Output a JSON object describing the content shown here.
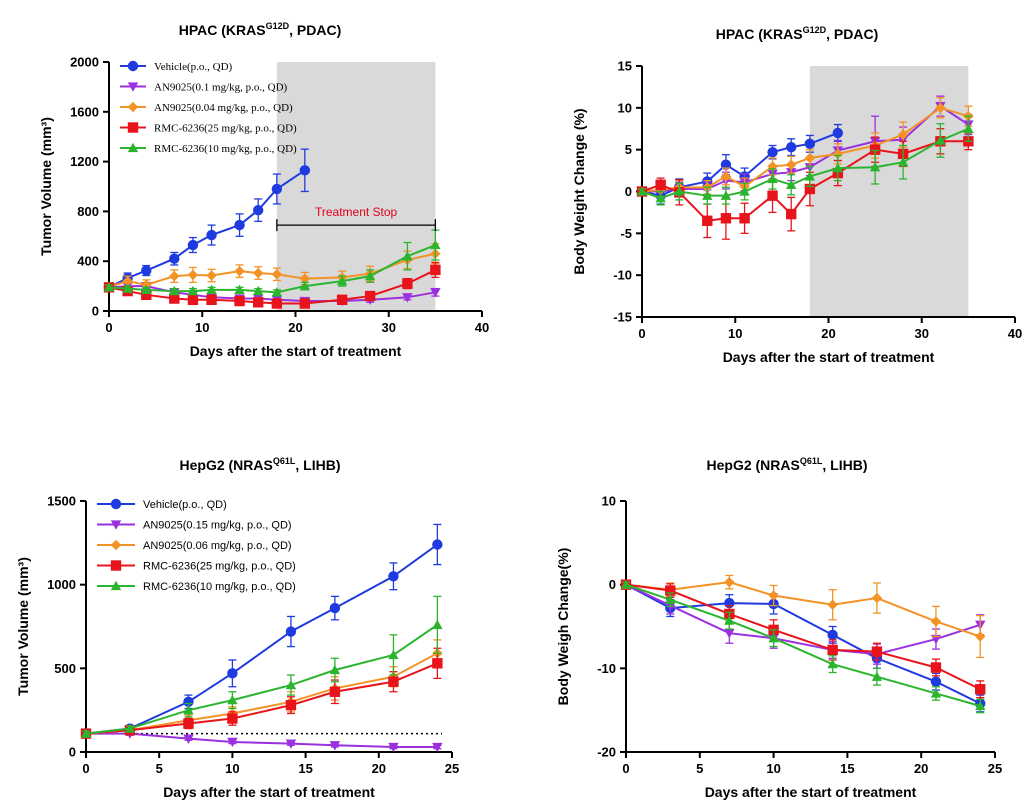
{
  "colors": {
    "vehicle": "#1f3be0",
    "an_low": "#9b30e0",
    "an_high": "#f39325",
    "rmc25": "#e8141b",
    "rmc10": "#2bb52f",
    "shade": "#d9d9d9"
  },
  "chart_data": [
    {
      "id": "A",
      "type": "line",
      "title_main": "HPAC (KRAS",
      "title_sup": "G12D",
      "title_rest": ", PDAC)",
      "xlabel": "Days after the start of treatment",
      "ylabel": "Tumor Volume (mm³)",
      "xlim": [
        0,
        40
      ],
      "ylim": [
        0,
        2000
      ],
      "xticks": [
        0,
        10,
        20,
        30,
        40
      ],
      "yticks": [
        0,
        400,
        800,
        1200,
        1600,
        2000
      ],
      "shaded_x": [
        18,
        35
      ],
      "legend_font": "serif",
      "legend_position": "top-left",
      "annotation": {
        "text": "Treatment Stop",
        "x1": 18,
        "x2": 35,
        "y": 690
      },
      "series": [
        {
          "name": "Vehicle(p.o., QD)",
          "color_key": "vehicle",
          "marker": "circle",
          "x": [
            0,
            2,
            4,
            7,
            9,
            11,
            14,
            16,
            18,
            21
          ],
          "y": [
            190,
            265,
            325,
            420,
            530,
            610,
            690,
            810,
            980,
            1130
          ],
          "err": [
            30,
            40,
            40,
            50,
            60,
            80,
            90,
            90,
            120,
            170
          ]
        },
        {
          "name": "AN9025(0.1 mg/kg, p.o., QD)",
          "color_key": "an_low",
          "marker": "tri-down",
          "x": [
            0,
            2,
            4,
            7,
            9,
            11,
            14,
            16,
            18,
            21,
            25,
            28,
            32,
            35
          ],
          "y": [
            190,
            200,
            200,
            150,
            130,
            110,
            100,
            100,
            90,
            80,
            80,
            90,
            110,
            150
          ],
          "err": [
            20,
            20,
            20,
            20,
            20,
            20,
            20,
            20,
            20,
            20,
            20,
            20,
            20,
            30
          ]
        },
        {
          "name": "AN9025(0.04 mg/kg, p.o., QD)",
          "color_key": "an_high",
          "marker": "diamond",
          "x": [
            0,
            2,
            4,
            7,
            9,
            11,
            14,
            16,
            18,
            21,
            25,
            28,
            32,
            35
          ],
          "y": [
            195,
            240,
            210,
            280,
            290,
            285,
            320,
            305,
            295,
            260,
            270,
            300,
            410,
            460
          ],
          "err": [
            30,
            40,
            40,
            50,
            60,
            50,
            50,
            50,
            50,
            50,
            50,
            60,
            70,
            80
          ]
        },
        {
          "name": "RMC-6236(25 mg/kg, p.o., QD)",
          "color_key": "rmc25",
          "marker": "square",
          "x": [
            0,
            2,
            4,
            7,
            9,
            11,
            14,
            16,
            18,
            21,
            25,
            28,
            32,
            35
          ],
          "y": [
            190,
            160,
            130,
            100,
            90,
            90,
            80,
            70,
            60,
            60,
            90,
            120,
            220,
            330
          ],
          "err": [
            20,
            20,
            20,
            20,
            20,
            20,
            20,
            20,
            20,
            20,
            20,
            30,
            40,
            60
          ]
        },
        {
          "name": "RMC-6236(10 mg/kg, p.o., QD)",
          "color_key": "rmc10",
          "marker": "triangle",
          "x": [
            0,
            2,
            4,
            7,
            9,
            11,
            14,
            16,
            18,
            21,
            25,
            28,
            32,
            35
          ],
          "y": [
            190,
            180,
            170,
            160,
            160,
            170,
            170,
            160,
            150,
            200,
            240,
            280,
            440,
            530
          ],
          "err": [
            20,
            20,
            20,
            20,
            20,
            20,
            20,
            20,
            20,
            30,
            40,
            50,
            110,
            120
          ]
        }
      ]
    },
    {
      "id": "B",
      "type": "line",
      "title_main": "HPAC (KRAS",
      "title_sup": "G12D",
      "title_rest": ", PDAC)",
      "xlabel": "Days after the start of treatment",
      "ylabel": "Body Weight Change (%)",
      "xlim": [
        0,
        40
      ],
      "ylim": [
        -15,
        15
      ],
      "xticks": [
        0,
        10,
        20,
        30,
        40
      ],
      "yticks": [
        -15,
        -10,
        -5,
        0,
        5,
        10,
        15
      ],
      "shaded_x": [
        18,
        35
      ],
      "series": [
        {
          "name": "Vehicle(p.o., QD)",
          "color_key": "vehicle",
          "marker": "circle",
          "x": [
            0,
            2,
            4,
            7,
            9,
            11,
            14,
            16,
            18,
            21
          ],
          "y": [
            0,
            -0.5,
            0.5,
            1.2,
            3.2,
            1.8,
            4.7,
            5.3,
            5.7,
            7.0
          ],
          "err": [
            0.3,
            1.0,
            1.0,
            1.0,
            1.2,
            1.0,
            0.8,
            1.0,
            1.0,
            1.0
          ]
        },
        {
          "name": "AN9025(0.1 mg/kg, p.o., QD)",
          "color_key": "an_low",
          "marker": "tri-down",
          "x": [
            0,
            2,
            4,
            7,
            9,
            11,
            14,
            16,
            18,
            21,
            25,
            28,
            32,
            35
          ],
          "y": [
            0,
            0,
            0.3,
            0.3,
            1.3,
            1.1,
            2.1,
            2.3,
            2.9,
            4.9,
            6.0,
            6.2,
            10.2,
            8.0
          ],
          "err": [
            0.3,
            0.8,
            0.8,
            0.8,
            1.0,
            1.0,
            1.0,
            1.0,
            1.0,
            1.2,
            3.0,
            1.5,
            1.2,
            1.2
          ]
        },
        {
          "name": "AN9025(0.04 mg/kg, p.o., QD)",
          "color_key": "an_high",
          "marker": "diamond",
          "x": [
            0,
            2,
            4,
            7,
            9,
            11,
            14,
            16,
            18,
            21,
            25,
            28,
            32,
            35
          ],
          "y": [
            0,
            0.2,
            0.5,
            0.5,
            1.8,
            0.6,
            3.0,
            3.2,
            4.0,
            4.5,
            5.5,
            6.8,
            10.0,
            9.0
          ],
          "err": [
            0.3,
            0.8,
            0.8,
            0.8,
            1.0,
            1.0,
            1.0,
            1.0,
            1.0,
            1.2,
            1.5,
            1.5,
            1.2,
            1.2
          ]
        },
        {
          "name": "RMC-6236(25 mg/kg, p.o., QD)",
          "color_key": "rmc25",
          "marker": "square",
          "x": [
            0,
            2,
            4,
            7,
            9,
            11,
            14,
            16,
            18,
            21,
            25,
            28,
            32,
            35
          ],
          "y": [
            0,
            0.8,
            -0.1,
            -3.5,
            -3.2,
            -3.2,
            -0.5,
            -2.7,
            0.3,
            2.2,
            5.0,
            4.5,
            6.0,
            6.0
          ],
          "err": [
            0.3,
            0.8,
            1.5,
            2.0,
            2.5,
            1.8,
            2.0,
            2.0,
            2.0,
            1.5,
            1.5,
            1.5,
            1.5,
            1.0
          ]
        },
        {
          "name": "RMC-6236(10 mg/kg, p.o., QD)",
          "color_key": "rmc10",
          "marker": "triangle",
          "x": [
            0,
            2,
            4,
            7,
            9,
            11,
            14,
            16,
            18,
            21,
            25,
            28,
            32,
            35
          ],
          "y": [
            0,
            -0.8,
            0,
            -0.5,
            -0.5,
            0,
            1.5,
            0.8,
            1.8,
            2.8,
            2.9,
            3.5,
            6.1,
            7.5
          ],
          "err": [
            0.3,
            0.8,
            1.0,
            1.0,
            1.0,
            1.0,
            1.2,
            1.2,
            1.2,
            1.5,
            2.0,
            2.0,
            2.0,
            1.5
          ]
        }
      ]
    },
    {
      "id": "C",
      "type": "line",
      "title_main": "HepG2 (NRAS",
      "title_sup": "Q61L",
      "title_rest": ", LIHB)",
      "xlabel": "Days after the start of treatment",
      "ylabel": "Tumor Volume (mm³)",
      "xlim": [
        0,
        25
      ],
      "ylim": [
        0,
        1500
      ],
      "xticks": [
        0,
        5,
        10,
        15,
        20,
        25
      ],
      "yticks": [
        0,
        500,
        1000,
        1500
      ],
      "baseline_dotted": 110,
      "legend_font": "sans",
      "legend_position": "top-left",
      "series": [
        {
          "name": "Vehicle(p.o., QD)",
          "color_key": "vehicle",
          "marker": "circle",
          "x": [
            0,
            3,
            7,
            10,
            14,
            17,
            21,
            24
          ],
          "y": [
            110,
            140,
            300,
            470,
            720,
            860,
            1050,
            1240
          ],
          "err": [
            15,
            15,
            40,
            80,
            90,
            70,
            80,
            120
          ]
        },
        {
          "name": "AN9025(0.15 mg/kg, p.o., QD)",
          "color_key": "an_low",
          "marker": "tri-down",
          "x": [
            0,
            3,
            7,
            10,
            14,
            17,
            21,
            24
          ],
          "y": [
            110,
            110,
            80,
            60,
            50,
            40,
            30,
            30
          ],
          "err": [
            10,
            10,
            10,
            10,
            10,
            10,
            10,
            10
          ]
        },
        {
          "name": "AN9025(0.06 mg/kg, p.o., QD)",
          "color_key": "an_high",
          "marker": "diamond",
          "x": [
            0,
            3,
            7,
            10,
            14,
            17,
            21,
            24
          ],
          "y": [
            110,
            130,
            190,
            230,
            300,
            380,
            450,
            590
          ],
          "err": [
            15,
            15,
            30,
            40,
            60,
            70,
            60,
            80
          ]
        },
        {
          "name": "RMC-6236(25 mg/kg, p.o., QD)",
          "color_key": "rmc25",
          "marker": "square",
          "x": [
            0,
            3,
            7,
            10,
            14,
            17,
            21,
            24
          ],
          "y": [
            110,
            130,
            170,
            200,
            280,
            360,
            420,
            530
          ],
          "err": [
            15,
            15,
            30,
            40,
            50,
            70,
            60,
            90
          ]
        },
        {
          "name": "RMC-6236(10 mg/kg, p.o., QD)",
          "color_key": "rmc10",
          "marker": "triangle",
          "x": [
            0,
            3,
            7,
            10,
            14,
            17,
            21,
            24
          ],
          "y": [
            110,
            140,
            250,
            310,
            400,
            490,
            580,
            760
          ],
          "err": [
            15,
            15,
            40,
            50,
            60,
            70,
            120,
            170
          ]
        }
      ]
    },
    {
      "id": "D",
      "type": "line",
      "title_main": "HepG2 (NRAS",
      "title_sup": "Q61L",
      "title_rest": ", LIHB)",
      "xlabel": "Days after the start of treatment",
      "ylabel": "Body Weigh Change(%)",
      "xlim": [
        0,
        25
      ],
      "ylim": [
        -20,
        10
      ],
      "xticks": [
        0,
        5,
        10,
        15,
        20,
        25
      ],
      "yticks": [
        -20,
        -10,
        0,
        10
      ],
      "series": [
        {
          "name": "Vehicle(p.o., QD)",
          "color_key": "vehicle",
          "marker": "circle",
          "x": [
            0,
            3,
            7,
            10,
            14,
            17,
            21,
            24
          ],
          "y": [
            0,
            -2.8,
            -2.2,
            -2.3,
            -6.0,
            -8.8,
            -11.6,
            -14.2
          ],
          "err": [
            0.3,
            1.0,
            1.0,
            1.2,
            1.0,
            1.2,
            1.0,
            1.0
          ]
        },
        {
          "name": "AN9025(0.15 mg/kg, p.o., QD)",
          "color_key": "an_low",
          "marker": "tri-down",
          "x": [
            0,
            3,
            7,
            10,
            14,
            17,
            21,
            24
          ],
          "y": [
            0,
            -2.5,
            -5.8,
            -6.4,
            -7.8,
            -8.3,
            -6.5,
            -4.8
          ],
          "err": [
            0.3,
            1.0,
            1.2,
            1.2,
            1.0,
            1.2,
            1.2,
            1.2
          ]
        },
        {
          "name": "AN9025(0.06 mg/kg, p.o., QD)",
          "color_key": "an_high",
          "marker": "diamond",
          "x": [
            0,
            3,
            7,
            10,
            14,
            17,
            21,
            24
          ],
          "y": [
            0,
            -0.6,
            0.3,
            -1.3,
            -2.4,
            -1.6,
            -4.4,
            -6.2
          ],
          "err": [
            0.3,
            0.8,
            0.8,
            1.2,
            1.8,
            1.8,
            1.8,
            2.5
          ]
        },
        {
          "name": "RMC-6236(25 mg/kg, p.o., QD)",
          "color_key": "rmc25",
          "marker": "square",
          "x": [
            0,
            3,
            7,
            10,
            14,
            17,
            21,
            24
          ],
          "y": [
            0,
            -0.7,
            -3.5,
            -5.4,
            -7.8,
            -8.0,
            -9.9,
            -12.5
          ],
          "err": [
            0.3,
            0.8,
            1.0,
            1.2,
            1.2,
            1.0,
            1.0,
            1.0
          ]
        },
        {
          "name": "RMC-6236(10 mg/kg, p.o., QD)",
          "color_key": "rmc10",
          "marker": "triangle",
          "x": [
            0,
            3,
            7,
            10,
            14,
            17,
            21,
            24
          ],
          "y": [
            0,
            -1.8,
            -4.3,
            -6.4,
            -9.5,
            -11.0,
            -13.0,
            -14.5
          ],
          "err": [
            0.3,
            0.8,
            1.0,
            1.0,
            1.0,
            1.0,
            0.8,
            0.8
          ]
        }
      ]
    }
  ]
}
